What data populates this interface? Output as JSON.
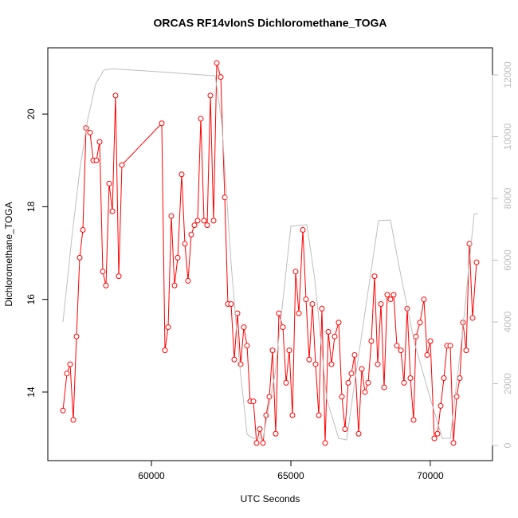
{
  "chart_data": {
    "type": "line",
    "title": "ORCAS RF14vlonS Dichloromethane_TOGA",
    "xlabel": "UTC Seconds",
    "ylabel": "Dichloromethane_TOGA",
    "xlim": [
      56286,
      72229
    ],
    "ylim": [
      12.52,
      21.43
    ],
    "y2lim": [
      -490,
      12877
    ],
    "xticks": [
      60000,
      65000,
      70000
    ],
    "yticks": [
      14,
      16,
      18,
      20
    ],
    "y2ticks": [
      0,
      2000,
      4000,
      6000,
      8000,
      10000,
      12000
    ],
    "series": [
      {
        "color": "#ff0000",
        "markers": true,
        "x": [
          56829,
          56971,
          57086,
          57200,
          57314,
          57429,
          57543,
          57657,
          57800,
          57914,
          58029,
          58143,
          58257,
          58371,
          58486,
          58600,
          58714,
          58829,
          58943,
          60371,
          60486,
          60600,
          60714,
          60829,
          60943,
          61086,
          61200,
          61314,
          61429,
          61543,
          61657,
          61771,
          61886,
          62000,
          62114,
          62229,
          62343,
          62486,
          62629,
          62743,
          62857,
          62971,
          63086,
          63200,
          63314,
          63429,
          63543,
          63657,
          63771,
          63886,
          64000,
          64114,
          64229,
          64343,
          64457,
          64571,
          64714,
          64829,
          64943,
          65057,
          65171,
          65286,
          65429,
          65543,
          65657,
          65771,
          65886,
          66000,
          66114,
          66229,
          66343,
          66457,
          66571,
          66714,
          66829,
          66943,
          67057,
          67171,
          67286,
          67429,
          67543,
          67657,
          67771,
          67886,
          68000,
          68114,
          68229,
          68343,
          68457,
          68571,
          68686,
          68800,
          68943,
          69057,
          69171,
          69286,
          69400,
          69486,
          69629,
          69771,
          69886,
          70000,
          70143,
          70257,
          70371,
          70486,
          70600,
          70714,
          70829,
          70943,
          71057,
          71171,
          71286,
          71400,
          71514,
          71657
        ],
        "values": [
          13.6,
          14.4,
          14.6,
          13.4,
          15.2,
          16.9,
          17.5,
          19.7,
          19.6,
          19.0,
          19.0,
          19.4,
          16.6,
          16.3,
          18.5,
          17.9,
          20.4,
          16.5,
          18.9,
          19.8,
          14.9,
          15.4,
          17.8,
          16.3,
          16.9,
          18.7,
          17.2,
          16.4,
          17.4,
          17.6,
          17.7,
          19.9,
          17.7,
          17.6,
          20.4,
          17.7,
          21.1,
          20.8,
          18.2,
          15.9,
          15.9,
          14.7,
          15.7,
          14.6,
          15.4,
          15.0,
          13.8,
          13.8,
          12.9,
          13.2,
          12.9,
          13.5,
          13.9,
          14.9,
          13.1,
          15.7,
          15.4,
          14.2,
          14.9,
          13.5,
          16.6,
          15.7,
          17.5,
          16.0,
          14.7,
          15.9,
          14.6,
          13.5,
          15.8,
          12.9,
          15.3,
          14.6,
          15.2,
          15.5,
          13.9,
          13.2,
          14.2,
          14.4,
          14.8,
          13.1,
          14.5,
          14.0,
          14.2,
          15.1,
          16.5,
          14.6,
          15.9,
          14.1,
          16.1,
          16.0,
          16.1,
          15.0,
          14.9,
          14.2,
          15.8,
          14.3,
          13.4,
          15.2,
          15.5,
          16.0,
          14.8,
          15.1,
          13.0,
          13.1,
          13.7,
          14.3,
          15.0,
          15.0,
          12.9,
          13.9,
          14.3,
          15.5,
          14.9,
          17.2,
          15.6,
          16.8
        ]
      },
      {
        "color": "#bebebe",
        "axis": "y2",
        "markers": false,
        "x": [
          56829,
          57143,
          57429,
          57714,
          58000,
          58286,
          58571,
          60286,
          62286,
          62514,
          62857,
          63143,
          63429,
          63657,
          64000,
          64429,
          65000,
          65571,
          65857,
          66286,
          66714,
          67000,
          67286,
          68143,
          68571,
          68857,
          69429,
          70000,
          70429,
          70714,
          71143,
          71571,
          71714
        ],
        "values": [
          4000,
          6700,
          8900,
          10550,
          11700,
          12150,
          12200,
          12100,
          11970,
          10550,
          5900,
          2800,
          360,
          230,
          230,
          2300,
          7100,
          7150,
          5400,
          1500,
          230,
          180,
          2040,
          7280,
          7300,
          5900,
          3330,
          1520,
          230,
          230,
          3590,
          7500,
          7500
        ]
      }
    ]
  }
}
